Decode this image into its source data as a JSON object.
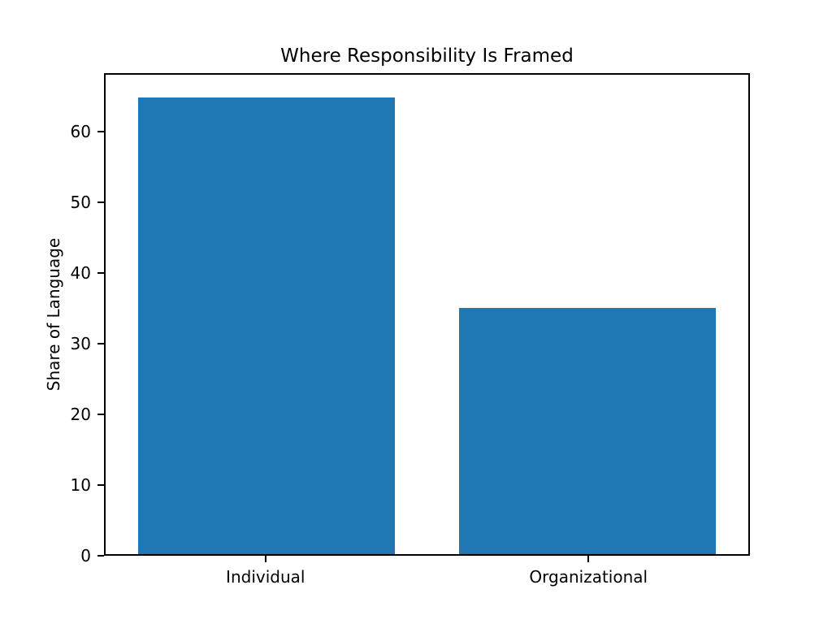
{
  "chart_data": {
    "type": "bar",
    "title": "Where Responsibility Is Framed",
    "xlabel": "",
    "ylabel": "Share of Language",
    "categories": [
      "Individual",
      "Organizational"
    ],
    "values": [
      65,
      35
    ],
    "yticks": [
      0,
      10,
      20,
      30,
      40,
      50,
      60
    ],
    "ylim": [
      0,
      68.25
    ],
    "xlim": [
      -0.5,
      1.5
    ],
    "bar_width_units": 0.8,
    "bar_color": "#1f77b4",
    "spine_color": "#000000",
    "background_color": "#ffffff",
    "grid": false,
    "legend": "none"
  }
}
